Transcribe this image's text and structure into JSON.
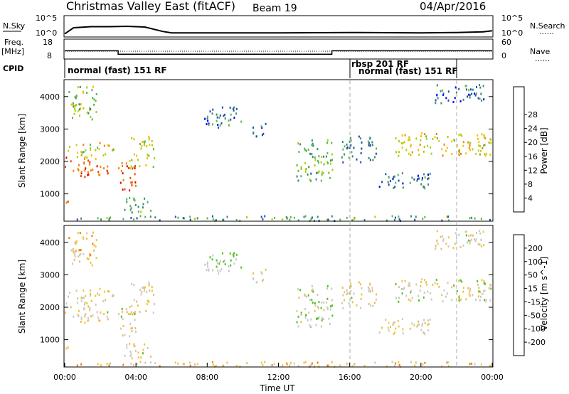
{
  "header": {
    "radar": "Christmas Valley East (fitACF)",
    "beam": "Beam 19",
    "date": "04/Apr/2016"
  },
  "labels": {
    "nsky": "N.Sky",
    "nsearch": "N.Search",
    "freq_line1": "Freq.",
    "freq_line2": "[MHz]",
    "nave": "Nave",
    "cpid": "CPID",
    "legend_dots": "......"
  },
  "ticks": {
    "noise_left": [
      "10^5",
      "10^0"
    ],
    "noise_right": [
      "10^5",
      "10^0"
    ],
    "freq_left": [
      "18",
      "8"
    ],
    "freq_right": [
      "60",
      "0"
    ],
    "range": [
      "1000",
      "2000",
      "3000",
      "4000"
    ],
    "time": [
      "00:00",
      "04:00",
      "08:00",
      "12:00",
      "16:00",
      "20:00",
      "00:00"
    ]
  },
  "cpid_segments": [
    {
      "label": "normal (fast) 151 RF",
      "start_hr": 0,
      "end_hr": 16
    },
    {
      "label": "rbsp 201 RF",
      "start_hr": 16,
      "end_hr": 22
    },
    {
      "label": "normal (fast) 151 RF",
      "start_hr": 16.5,
      "end_hr": 24
    }
  ],
  "colorbars": {
    "power": {
      "title": "Power [dB]",
      "ticks": [
        "4",
        "8",
        "12",
        "16",
        "20",
        "24",
        "28"
      ],
      "colors": [
        "#0000ff",
        "#1f4faa",
        "#3c8a6a",
        "#58b850",
        "#a8d000",
        "#f0c000",
        "#f08000",
        "#f04000",
        "#e00000"
      ]
    },
    "velocity": {
      "title": "Velocity [m s^-1]",
      "ticks": [
        "200",
        "100",
        "50",
        "15",
        "-15",
        "-50",
        "-100",
        "-200"
      ],
      "colors": [
        "#1010b0",
        "#2050d0",
        "#2e8a5a",
        "#50c020",
        "#c8c8c8",
        "#f0c040",
        "#f08000",
        "#f03000",
        "#e00000"
      ]
    }
  },
  "chart_data": {
    "type": "heatmap",
    "x_label": "Time UT",
    "y_label": "Slant Range [km]",
    "x_range_hr": [
      0,
      24
    ],
    "y_range_km": [
      180,
      4500
    ],
    "sky_noise_log": [
      [
        0,
        0.5
      ],
      [
        0.5,
        2.3
      ],
      [
        1.5,
        2.6
      ],
      [
        2.5,
        2.6
      ],
      [
        3.5,
        2.7
      ],
      [
        4.5,
        2.5
      ],
      [
        5.5,
        1.2
      ],
      [
        6,
        0.8
      ],
      [
        8,
        0.8
      ],
      [
        12,
        0.8
      ],
      [
        16,
        0.9
      ],
      [
        20,
        0.8
      ],
      [
        22,
        0.9
      ],
      [
        23.5,
        1.1
      ],
      [
        24,
        1.4
      ]
    ],
    "frequency_mhz": [
      [
        0,
        12
      ],
      [
        3,
        12
      ],
      [
        3,
        10
      ],
      [
        15,
        10
      ],
      [
        15,
        12
      ],
      [
        24,
        12
      ]
    ],
    "scatter_regions": [
      {
        "t0": 0.0,
        "t1": 2.4,
        "r0": 1550,
        "r1": 2150,
        "power": 26,
        "vel": -10
      },
      {
        "t0": 0.1,
        "t1": 2.8,
        "r0": 2150,
        "r1": 2600,
        "power": 17,
        "vel": -20
      },
      {
        "t0": 0.2,
        "t1": 1.8,
        "r0": 3300,
        "r1": 4400,
        "power": 14,
        "vel": -30
      },
      {
        "t0": 0.0,
        "t1": 0.3,
        "r0": 750,
        "r1": 1050,
        "power": 22,
        "vel": -40
      },
      {
        "t0": 3.0,
        "t1": 4.0,
        "r0": 1100,
        "r1": 2000,
        "power": 27,
        "vel": -10
      },
      {
        "t0": 3.6,
        "t1": 5.0,
        "r0": 1800,
        "r1": 2800,
        "power": 16,
        "vel": -15
      },
      {
        "t0": 3.2,
        "t1": 4.8,
        "r0": 450,
        "r1": 950,
        "power": 12,
        "vel": -5
      },
      {
        "t0": 7.8,
        "t1": 10.0,
        "r0": 3050,
        "r1": 3700,
        "power": 8,
        "vel": 20
      },
      {
        "t0": 10.5,
        "t1": 11.5,
        "r0": 2800,
        "r1": 3200,
        "power": 7,
        "vel": -15
      },
      {
        "t0": 13.0,
        "t1": 15.0,
        "r0": 1400,
        "r1": 2700,
        "power": 12,
        "vel": 10
      },
      {
        "t0": 15.5,
        "t1": 17.5,
        "r0": 2000,
        "r1": 2800,
        "power": 8,
        "vel": -10
      },
      {
        "t0": 17.5,
        "t1": 20.5,
        "r0": 1200,
        "r1": 1700,
        "power": 7,
        "vel": -20
      },
      {
        "t0": 18.5,
        "t1": 24.0,
        "r0": 2200,
        "r1": 2900,
        "power": 18,
        "vel": -5
      },
      {
        "t0": 20.5,
        "t1": 23.5,
        "r0": 3800,
        "r1": 4400,
        "power": 7,
        "vel": -10
      },
      {
        "t0": 0.0,
        "t1": 24.0,
        "r0": 200,
        "r1": 350,
        "power": 10,
        "vel": -30
      }
    ]
  }
}
